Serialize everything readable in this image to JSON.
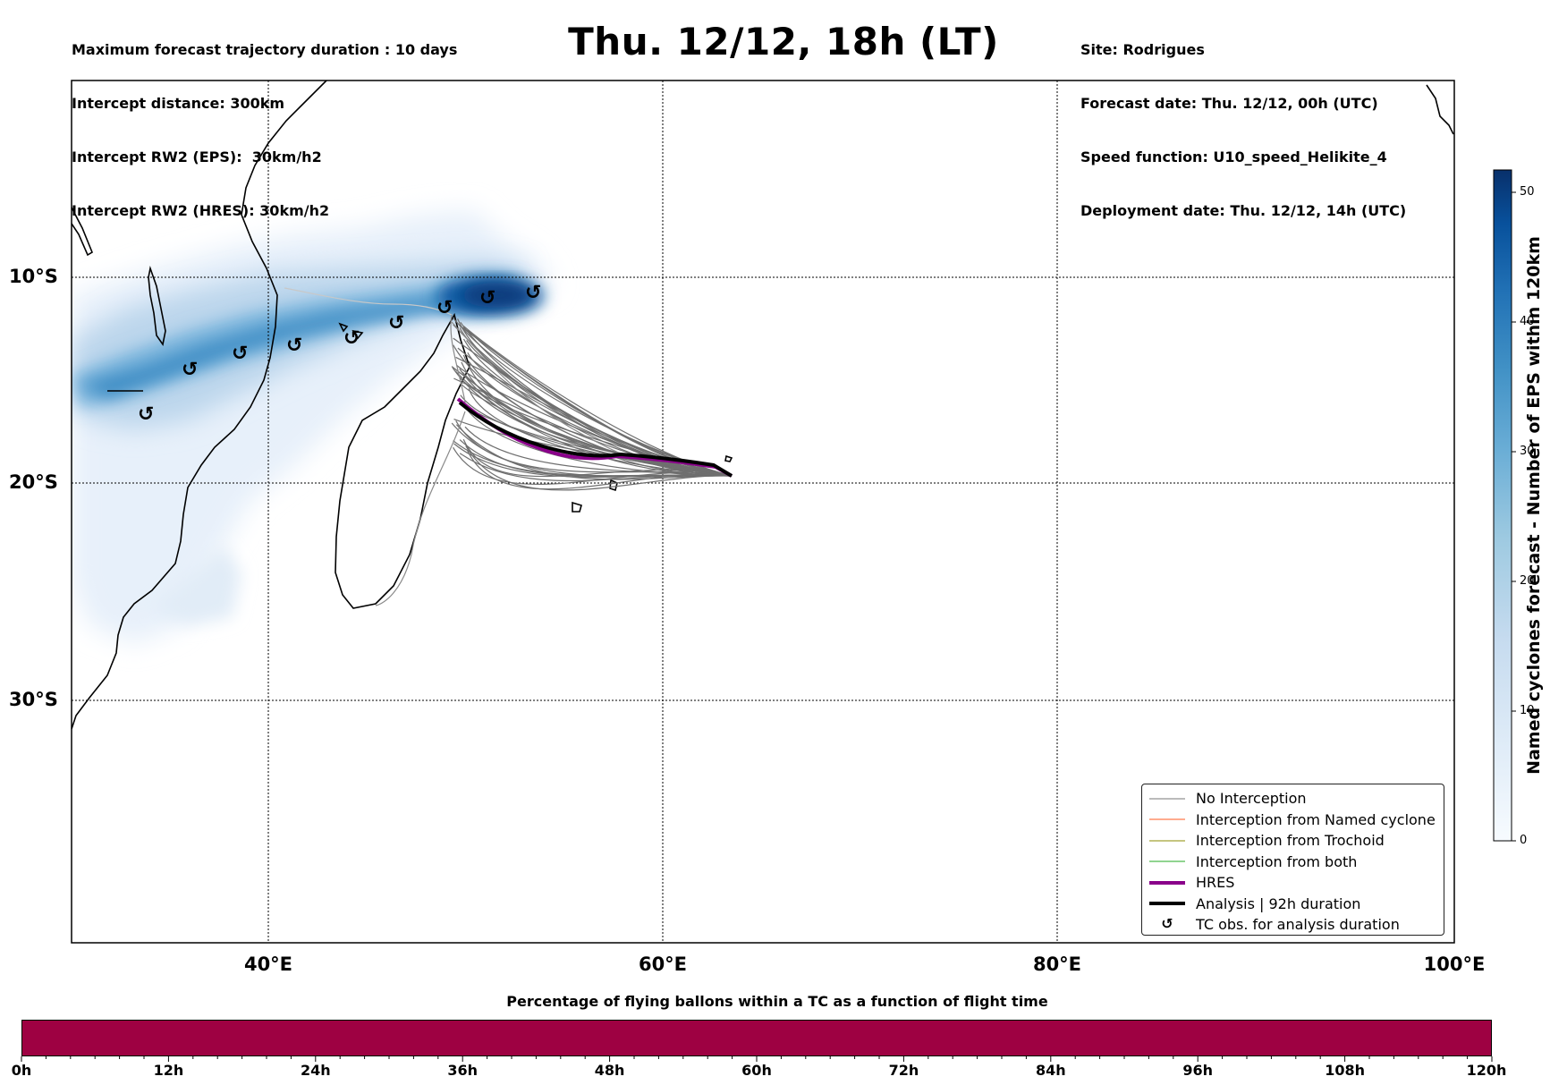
{
  "header": {
    "left_lines": [
      "Maximum forecast trajectory duration : 10 days",
      "Intercept distance: 300km",
      "Intercept RW2 (EPS):  30km/h2",
      "Intercept RW2 (HRES): 30km/h2"
    ],
    "title": "Thu. 12/12, 18h (LT)",
    "right_lines": [
      "Site: Rodrigues",
      "Forecast date: Thu. 12/12, 00h (UTC)",
      "Speed function: U10_speed_Helikite_4",
      "Deployment date: Thu. 12/12, 14h (UTC)"
    ]
  },
  "map": {
    "lat_labels": [
      "10°S",
      "20°S",
      "30°S"
    ],
    "lon_labels": [
      "40°E",
      "60°E",
      "80°E",
      "100°E"
    ]
  },
  "legend": {
    "items": [
      {
        "label": "No Interception",
        "color": "#777777",
        "style": "thin"
      },
      {
        "label": "Interception from Named cyclone",
        "color": "#ff5a1f",
        "style": "thin"
      },
      {
        "label": "Interception from Trochoid",
        "color": "#8b8b00",
        "style": "thin"
      },
      {
        "label": "Interception from both",
        "color": "#22aa22",
        "style": "thin"
      },
      {
        "label": "HRES",
        "color": "#8a008a",
        "style": "thick"
      },
      {
        "label": "Analysis | 92h duration",
        "color": "#000000",
        "style": "thick"
      },
      {
        "label": "TC obs. for analysis duration",
        "color": "#000000",
        "style": "marker",
        "icon": "cyclone-icon"
      }
    ]
  },
  "colorbar": {
    "label": "Named cyclones forecast - Number of EPS within 120km",
    "ticks": [
      "0",
      "10",
      "20",
      "30",
      "40",
      "50"
    ],
    "colors": [
      "#f7fbff",
      "#deebf7",
      "#c6dbef",
      "#9ecae1",
      "#6baed6",
      "#4292c6",
      "#2171b5",
      "#08519c",
      "#08306b"
    ]
  },
  "timeseries": {
    "title": "Percentage of flying ballons within a TC as a function of flight time",
    "bar_color": "#9e0142",
    "ticks": [
      "0h",
      "12h",
      "24h",
      "36h",
      "48h",
      "60h",
      "72h",
      "84h",
      "96h",
      "108h",
      "120h"
    ]
  }
}
